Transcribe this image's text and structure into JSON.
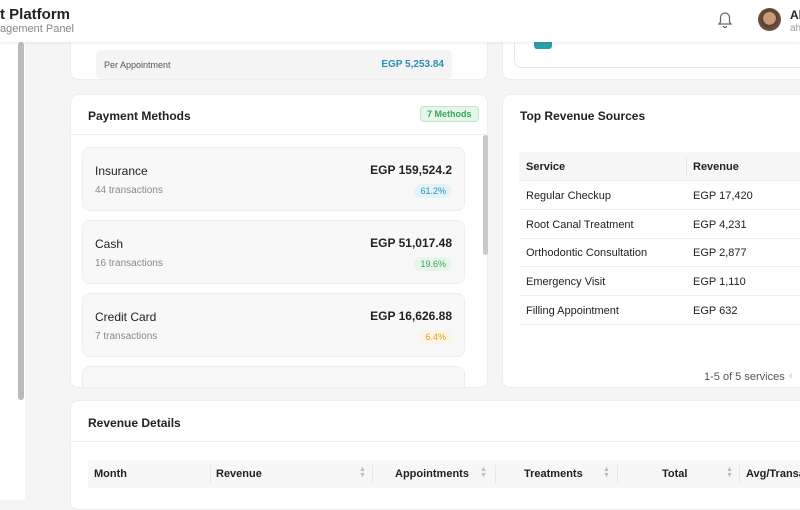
{
  "header": {
    "title": "t Platform",
    "subtitle": "agement Panel",
    "user_name": "Ah",
    "user_email": "ah"
  },
  "summary": {
    "per_appointment_label": "Per Appointment",
    "per_appointment_value": "EGP 5,253.84"
  },
  "payment_methods": {
    "title": "Payment Methods",
    "badge": "7 Methods",
    "items": [
      {
        "name": "Insurance",
        "transactions": "44 transactions",
        "amount": "EGP 159,524.2",
        "percent": "61.2%",
        "color": "#2a8fb0",
        "bg": "#e3f3f9"
      },
      {
        "name": "Cash",
        "transactions": "16 transactions",
        "amount": "EGP 51,017.48",
        "percent": "19.6%",
        "color": "#3aa35a",
        "bg": "#e6f6ea"
      },
      {
        "name": "Credit Card",
        "transactions": "7 transactions",
        "amount": "EGP 16,626.88",
        "percent": "6.4%",
        "color": "#e0a030",
        "bg": "#fdf4e3"
      }
    ]
  },
  "top_revenue": {
    "title": "Top Revenue Sources",
    "columns": [
      "Service",
      "Revenue"
    ],
    "rows": [
      [
        "Regular Checkup",
        "EGP 17,420"
      ],
      [
        "Root Canal Treatment",
        "EGP 4,231"
      ],
      [
        "Orthodontic Consultation",
        "EGP 2,877"
      ],
      [
        "Emergency Visit",
        "EGP 1,110"
      ],
      [
        "Filling Appointment",
        "EGP 632"
      ]
    ],
    "pagination": "1-5 of 5 services"
  },
  "revenue_details": {
    "title": "Revenue Details",
    "columns": [
      "Month",
      "Revenue",
      "Appointments",
      "Treatments",
      "Total",
      "Avg/Transac"
    ]
  }
}
